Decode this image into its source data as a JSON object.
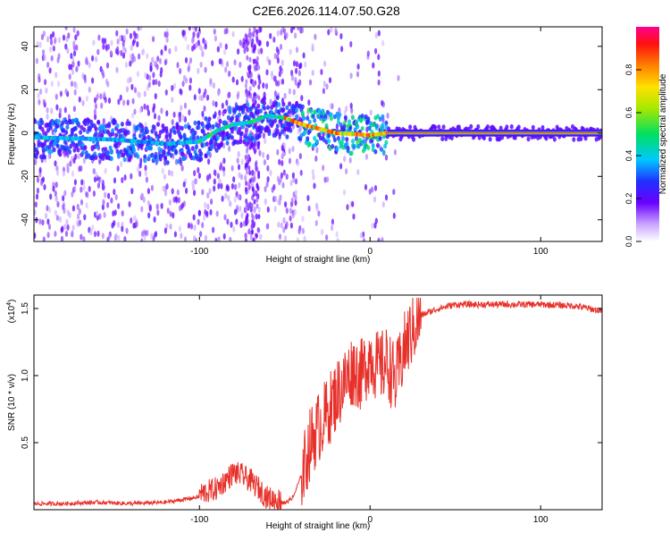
{
  "title": "C2E6.2026.114.07.50.G28",
  "colors": {
    "snr_line": "#e8302a",
    "axis": "#000000",
    "background": "#ffffff"
  },
  "chart_data": [
    {
      "type": "heatmap",
      "name": "spectrogram",
      "xlabel": "Height of straight line (km)",
      "ylabel": "Frequency (Hz)",
      "xlim": [
        -197,
        136
      ],
      "ylim": [
        -50,
        49
      ],
      "xticks": [
        -100,
        0,
        100
      ],
      "xtick_labels": [
        "-100",
        "0",
        "100"
      ],
      "yticks": [
        -40,
        -20,
        0,
        20,
        40
      ],
      "ytick_labels": [
        "-40",
        "-20",
        "0",
        "20",
        "40"
      ],
      "ridge": [
        {
          "x": -197,
          "y": -2
        },
        {
          "x": -150,
          "y": -3
        },
        {
          "x": -120,
          "y": -5
        },
        {
          "x": -100,
          "y": -4
        },
        {
          "x": -90,
          "y": 1
        },
        {
          "x": -80,
          "y": 4
        },
        {
          "x": -70,
          "y": 5
        },
        {
          "x": -60,
          "y": 8
        },
        {
          "x": -50,
          "y": 7
        },
        {
          "x": -40,
          "y": 4
        },
        {
          "x": -30,
          "y": 2
        },
        {
          "x": -20,
          "y": 0
        },
        {
          "x": 0,
          "y": -1
        },
        {
          "x": 10,
          "y": 0
        },
        {
          "x": 136,
          "y": 0
        }
      ],
      "colorbar": {
        "label": "Normalized spectral amplitude",
        "range": [
          0,
          1
        ],
        "ticks": [
          0.0,
          0.2,
          0.4,
          0.6,
          0.8
        ],
        "tick_labels": [
          "0.0",
          "0.2",
          "0.4",
          "0.6",
          "0.8"
        ]
      }
    },
    {
      "type": "line",
      "name": "snr",
      "xlabel": "Height of straight line (km)",
      "ylabel": "SNR (10 * v/v)",
      "y_multiplier_label": "(x10",
      "y_multiplier_exp": "4",
      "xlim": [
        -197,
        136
      ],
      "ylim": [
        0,
        1.6
      ],
      "xticks": [
        -100,
        0,
        100
      ],
      "xtick_labels": [
        "-100",
        "0",
        "100"
      ],
      "yticks": [
        0.5,
        1.0,
        1.5
      ],
      "ytick_labels": [
        "0.5",
        "1.0",
        "1.5"
      ],
      "series": [
        {
          "name": "SNR",
          "x": [
            -197,
            -180,
            -160,
            -140,
            -120,
            -100,
            -90,
            -85,
            -80,
            -75,
            -70,
            -65,
            -60,
            -55,
            -50,
            -45,
            -40,
            -35,
            -30,
            -25,
            -20,
            -15,
            -10,
            -5,
            0,
            5,
            10,
            15,
            20,
            25,
            30,
            40,
            50,
            60,
            80,
            100,
            120,
            136
          ],
          "y": [
            0.03,
            0.03,
            0.04,
            0.03,
            0.04,
            0.08,
            0.12,
            0.18,
            0.24,
            0.22,
            0.18,
            0.12,
            0.05,
            0.04,
            0.03,
            0.08,
            0.25,
            0.5,
            0.62,
            0.72,
            0.85,
            0.95,
            1.05,
            1.0,
            1.15,
            1.05,
            1.1,
            0.95,
            1.2,
            1.35,
            1.45,
            1.5,
            1.53,
            1.53,
            1.53,
            1.53,
            1.52,
            1.48
          ]
        }
      ]
    }
  ]
}
